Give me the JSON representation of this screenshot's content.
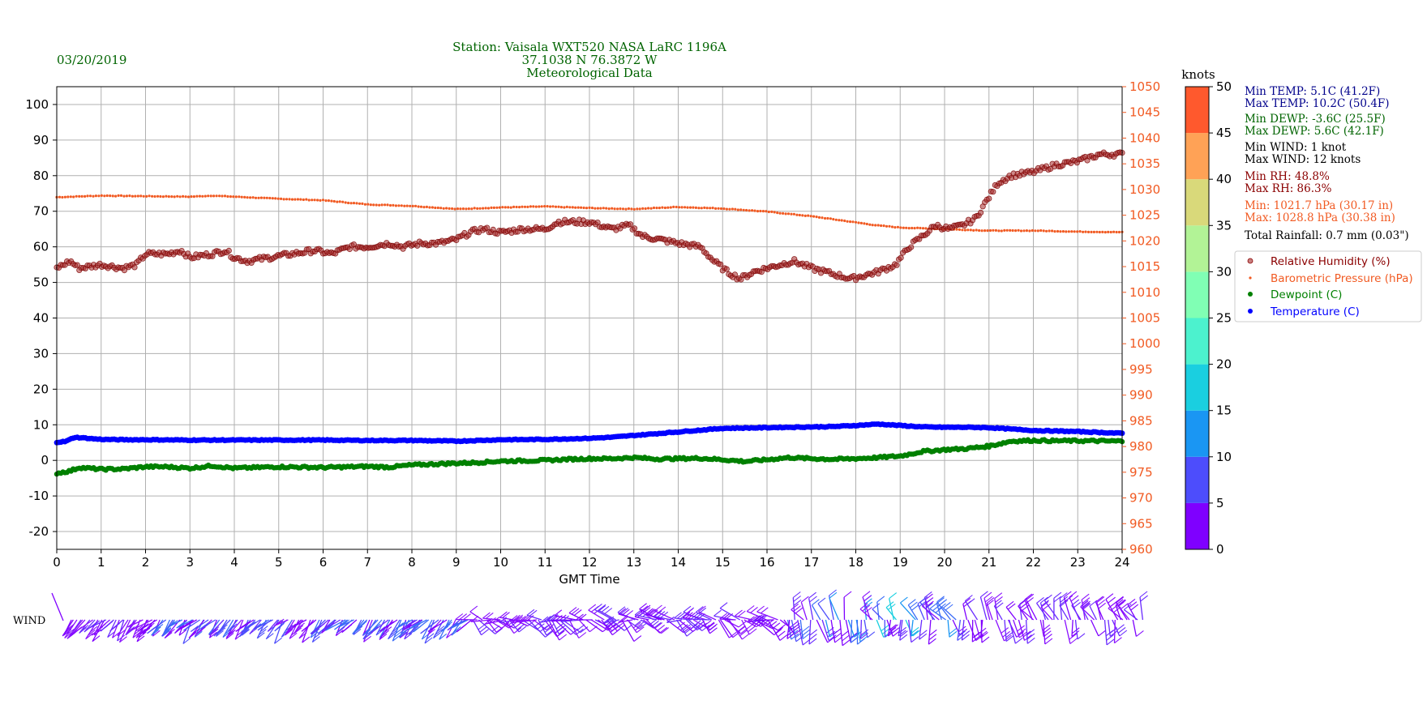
{
  "date": "03/20/2019",
  "title_lines": [
    "Station:  Vaisala WXT520  NASA LaRC 1196A",
    "37.1038 N 76.3872 W",
    "Meteorological Data"
  ],
  "colors": {
    "title": "#006400",
    "temperature": "#0000ff",
    "dewpoint": "#008000",
    "humidity": "#8b0000",
    "pressure": "#f15a22",
    "stats_temp": "#00008b",
    "stats_dewp": "#006400",
    "stats_wind": "#000000",
    "stats_rh": "#8b0000",
    "stats_press": "#f15a22",
    "grid": "#b0b0b0"
  },
  "stats": {
    "min_temp": "Min TEMP: 5.1C (41.2F)",
    "max_temp": "Max TEMP: 10.2C (50.4F)",
    "min_dewp": "Min DEWP: -3.6C (25.5F)",
    "max_dewp": "Max DEWP: 5.6C (42.1F)",
    "min_wind": "Min WIND: 1 knot",
    "max_wind": "Max WIND: 12 knots",
    "min_rh": "Min RH: 48.8%",
    "max_rh": "Max RH: 86.3%",
    "min_press": "Min: 1021.7 hPa (30.17 in)",
    "max_press": "Max: 1028.8 hPa (30.38 in)",
    "rainfall": "Total Rainfall: 0.7 mm (0.03\")"
  },
  "legend": [
    {
      "label": "Relative Humidity (%)",
      "series": "humidity"
    },
    {
      "label": "Barometric Pressure (hPa)",
      "series": "pressure"
    },
    {
      "label": "Dewpoint (C)",
      "series": "dewpoint"
    },
    {
      "label": "Temperature (C)",
      "series": "temperature"
    }
  ],
  "colorbar": {
    "label": "knots",
    "ticks": [
      "0",
      "5",
      "10",
      "15",
      "20",
      "25",
      "30",
      "35",
      "40",
      "45",
      "50"
    ],
    "colors": [
      "#7f00ff",
      "#4d4dfc",
      "#1a96f3",
      "#1acfe0",
      "#4cf2ce",
      "#80ffb4",
      "#b2f396",
      "#d9d97a",
      "#ffa256",
      "#ff592d",
      "#ff0000"
    ]
  },
  "wind_label": "WIND",
  "chart_data": {
    "type": "scatter",
    "xlabel": "GMT Time",
    "xlim": [
      0,
      24
    ],
    "x_ticks": [
      "0",
      "1",
      "2",
      "3",
      "4",
      "5",
      "6",
      "7",
      "8",
      "9",
      "10",
      "11",
      "12",
      "13",
      "14",
      "15",
      "16",
      "17",
      "18",
      "19",
      "20",
      "21",
      "22",
      "23",
      "24"
    ],
    "ylim_left": [
      -25,
      105
    ],
    "y_ticks_left": [
      "-20",
      "-10",
      "0",
      "10",
      "20",
      "30",
      "40",
      "50",
      "60",
      "70",
      "80",
      "90",
      "100"
    ],
    "ylim_right": [
      960,
      1050
    ],
    "y_ticks_right": [
      "960",
      "965",
      "970",
      "975",
      "980",
      "985",
      "990",
      "995",
      "1000",
      "1005",
      "1010",
      "1015",
      "1020",
      "1025",
      "1030",
      "1035",
      "1040",
      "1045",
      "1050"
    ],
    "grid": true,
    "legend_position": "right",
    "series": [
      {
        "name": "Relative Humidity (%)",
        "axis": "left",
        "x": [
          0,
          0.3,
          0.5,
          1,
          1.5,
          1.8,
          2,
          2.5,
          2.8,
          3,
          3.5,
          3.8,
          4,
          4.3,
          4.8,
          5.3,
          5.8,
          6.2,
          6.6,
          7,
          7.5,
          7.8,
          8.2,
          8.6,
          9,
          9.3,
          9.6,
          10,
          10.5,
          11,
          11.3,
          11.7,
          12,
          12.5,
          12.9,
          13.2,
          13.6,
          14,
          14.5,
          14.8,
          15.1,
          15.4,
          15.7,
          16,
          16.3,
          16.6,
          17,
          17.3,
          17.6,
          17.9,
          18.2,
          18.5,
          18.9,
          19.2,
          19.5,
          19.8,
          20.1,
          20.4,
          20.7,
          21,
          21.2,
          21.5,
          22,
          22.5,
          23,
          23.5,
          24
        ],
        "values": [
          54,
          56,
          54,
          55,
          54,
          55,
          58,
          58,
          59,
          57,
          58,
          59,
          57,
          56,
          57,
          58,
          59,
          58,
          60,
          60,
          61,
          60,
          61,
          61,
          62,
          64,
          65,
          64,
          65,
          65,
          67,
          67,
          67,
          65,
          66,
          63,
          62,
          61,
          60,
          56,
          53,
          51,
          53,
          54,
          55,
          56,
          54,
          53,
          52,
          51,
          52,
          53,
          55,
          60,
          63,
          66,
          65,
          66,
          68,
          74,
          78,
          80,
          81,
          83,
          84,
          86,
          86
        ]
      },
      {
        "name": "Barometric Pressure (hPa)",
        "axis": "right",
        "x": [
          0,
          1,
          2,
          3,
          3.5,
          4,
          5,
          6,
          7,
          8,
          9,
          10,
          11,
          12,
          13,
          14,
          15,
          16,
          17,
          18,
          18.5,
          19,
          20,
          21,
          22,
          23,
          24
        ],
        "values": [
          1028.5,
          1028.8,
          1028.7,
          1028.6,
          1028.8,
          1028.6,
          1028.2,
          1027.9,
          1027.1,
          1026.8,
          1026.2,
          1026.5,
          1026.7,
          1026.4,
          1026.2,
          1026.6,
          1026.3,
          1025.7,
          1024.8,
          1023.6,
          1023.0,
          1022.6,
          1022.3,
          1022.0,
          1022.0,
          1021.8,
          1021.7
        ]
      },
      {
        "name": "Dewpoint (C)",
        "axis": "left",
        "x": [
          0,
          0.3,
          0.5,
          1,
          1.5,
          2,
          2.5,
          3,
          3.5,
          4,
          4.5,
          5,
          6,
          7,
          7.5,
          8,
          9,
          9.5,
          10,
          11,
          11.5,
          12,
          12.5,
          13,
          13.5,
          14,
          14.5,
          15,
          15.5,
          16,
          16.5,
          17,
          17.5,
          18,
          18.5,
          19,
          19.5,
          20,
          20.5,
          21,
          21.5,
          22,
          22.5,
          23,
          24
        ],
        "values": [
          -3.6,
          -3,
          -2,
          -2.5,
          -2.4,
          -1.8,
          -1.8,
          -2.2,
          -1.5,
          -2.2,
          -2,
          -1.8,
          -2,
          -1.7,
          -1.9,
          -1.3,
          -0.8,
          -0.6,
          -0.2,
          0,
          0.3,
          0.5,
          0.5,
          0.8,
          0.4,
          0.5,
          0.6,
          0.2,
          -0.3,
          0.2,
          0.8,
          0.5,
          0.3,
          0.5,
          0.8,
          1.2,
          2.5,
          3,
          3.3,
          4,
          5.4,
          5.6,
          5.5,
          5.5,
          5.4
        ]
      },
      {
        "name": "Temperature (C)",
        "axis": "left",
        "x": [
          0,
          0.2,
          0.4,
          0.6,
          1,
          1.5,
          2,
          3,
          4,
          5,
          6,
          7,
          8,
          9,
          10,
          11,
          12,
          12.5,
          13,
          13.5,
          14,
          14.5,
          15,
          15.5,
          16,
          16.5,
          17,
          17.5,
          18,
          18.5,
          19,
          19.5,
          20,
          20.5,
          21,
          21.5,
          22,
          23,
          24
        ],
        "values": [
          5.1,
          5.3,
          6.5,
          6.3,
          5.9,
          5.8,
          5.8,
          5.7,
          5.7,
          5.7,
          5.7,
          5.6,
          5.6,
          5.4,
          5.8,
          5.9,
          6.2,
          6.5,
          7,
          7.5,
          8,
          8.5,
          9,
          9.1,
          9.2,
          9.3,
          9.4,
          9.5,
          9.8,
          10.2,
          9.8,
          9.4,
          9.3,
          9.3,
          9.2,
          8.8,
          8.4,
          8.1,
          7.6
        ]
      }
    ]
  }
}
